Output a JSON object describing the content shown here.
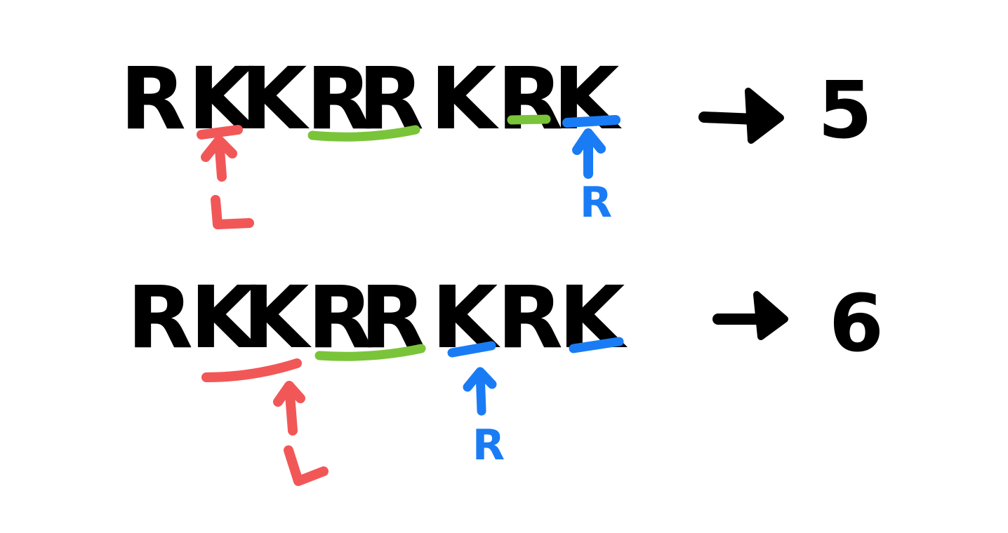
{
  "colors": {
    "ink": "#000000",
    "left_pointer": "#f25757",
    "right_pointer": "#1a7cf5",
    "highlight": "#7ac43a"
  },
  "rows": [
    {
      "sequence": [
        "R",
        "K",
        "K",
        "R",
        "R",
        "K",
        "R",
        "K"
      ],
      "result": "5",
      "left_label": "L",
      "right_label": "R",
      "left_pointer_index": 1,
      "right_pointer_index": 7,
      "left_underline": [
        1,
        1
      ],
      "right_underline": [
        7,
        7
      ],
      "green_underlines": [
        [
          3,
          4
        ],
        [
          6,
          6
        ]
      ]
    },
    {
      "sequence": [
        "R",
        "K",
        "K",
        "R",
        "R",
        "K",
        "R",
        "K"
      ],
      "result": "6",
      "left_label": "L",
      "right_label": "R",
      "left_pointer_index": 2,
      "right_pointer_index": 5,
      "left_underline": [
        1,
        2
      ],
      "right_underline": [
        5,
        5
      ],
      "extra_blue_underlines": [
        [
          7,
          7
        ]
      ],
      "green_underlines": [
        [
          3,
          4
        ]
      ]
    }
  ]
}
